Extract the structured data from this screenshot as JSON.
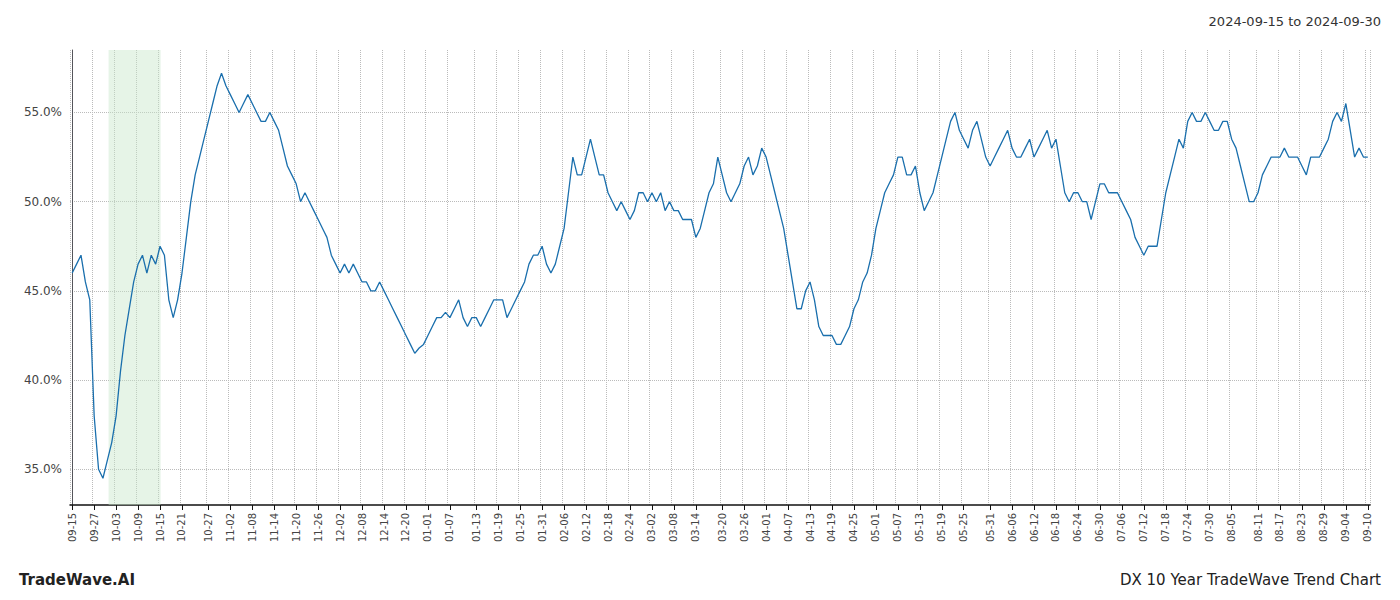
{
  "chart_data": {
    "type": "line",
    "title": "2024-09-15 to 2024-09-30",
    "annotations": [
      "TradeWave.AI",
      "DX 10 Year TradeWave Trend Chart"
    ],
    "color": "#1a6fad",
    "grid": true,
    "highlight": {
      "start": 8.288,
      "end": 20.128,
      "color": "#c8e6c9"
    },
    "ylim": [
      33.0,
      58.5
    ],
    "yticks": [
      {
        "value": 35.0,
        "label": "35.0%"
      },
      {
        "value": 40.0,
        "label": "40.0%"
      },
      {
        "value": 45.0,
        "label": "45.0%"
      },
      {
        "value": 50.0,
        "label": "50.0%"
      },
      {
        "value": 55.0,
        "label": "55.0%"
      }
    ],
    "categories": [
      "09-15",
      null,
      null,
      null,
      null,
      "09-27",
      null,
      null,
      null,
      null,
      "10-03",
      null,
      null,
      null,
      null,
      "10-09",
      null,
      null,
      null,
      null,
      "10-15",
      null,
      null,
      null,
      null,
      "10-21",
      null,
      null,
      null,
      null,
      null,
      "10-27",
      null,
      null,
      null,
      null,
      "11-02",
      null,
      null,
      null,
      null,
      "11-08",
      null,
      null,
      null,
      null,
      "11-14",
      null,
      null,
      null,
      null,
      "11-20",
      null,
      null,
      null,
      null,
      "11-26",
      null,
      null,
      null,
      null,
      "12-02",
      null,
      null,
      null,
      null,
      "12-08",
      null,
      null,
      null,
      null,
      "12-14",
      null,
      null,
      null,
      null,
      "12-20",
      null,
      null,
      null,
      null,
      "01-01",
      null,
      null,
      null,
      null,
      "01-07",
      null,
      null,
      null,
      null,
      null,
      "01-13",
      null,
      null,
      null,
      null,
      "01-19",
      null,
      null,
      null,
      null,
      "01-25",
      null,
      null,
      null,
      null,
      "01-31",
      null,
      null,
      null,
      null,
      "02-06",
      null,
      null,
      null,
      null,
      "02-12",
      null,
      null,
      null,
      null,
      "02-18",
      null,
      null,
      null,
      null,
      "02-24",
      null,
      null,
      null,
      null,
      "03-02",
      null,
      null,
      null,
      null,
      "03-08",
      null,
      null,
      null,
      null,
      "03-14",
      null,
      null,
      null,
      null,
      null,
      "03-20",
      null,
      null,
      null,
      null,
      "03-26",
      null,
      null,
      null,
      null,
      "04-01",
      null,
      null,
      null,
      null,
      "04-07",
      null,
      null,
      null,
      null,
      "04-13",
      null,
      null,
      null,
      null,
      "04-19",
      null,
      null,
      null,
      null,
      "04-25",
      null,
      null,
      null,
      null,
      "05-01",
      null,
      null,
      null,
      null,
      "05-07",
      null,
      null,
      null,
      null,
      "05-13",
      null,
      null,
      null,
      null,
      "05-19",
      null,
      null,
      null,
      null,
      "05-25",
      null,
      null,
      null,
      null,
      null,
      "05-31",
      null,
      null,
      null,
      null,
      "06-06",
      null,
      null,
      null,
      null,
      "06-12",
      null,
      null,
      null,
      null,
      "06-18",
      null,
      null,
      null,
      null,
      "06-24",
      null,
      null,
      null,
      null,
      "06-30",
      null,
      null,
      null,
      null,
      "07-06",
      null,
      null,
      null,
      null,
      "07-12",
      null,
      null,
      null,
      null,
      "07-18",
      null,
      null,
      null,
      null,
      "07-24",
      null,
      null,
      null,
      null,
      "07-30",
      null,
      null,
      null,
      null,
      "08-05",
      null,
      null,
      null,
      null,
      null,
      "08-11",
      null,
      null,
      null,
      null,
      "08-17",
      null,
      null,
      null,
      null,
      "08-23",
      null,
      null,
      null,
      null,
      "08-29",
      null,
      null,
      null,
      null,
      "09-04",
      null,
      null,
      null,
      null,
      "09-10"
    ],
    "values": [
      46.0,
      46.5,
      47.0,
      45.5,
      44.5,
      38.0,
      35.0,
      34.5,
      35.5,
      36.5,
      38.0,
      40.5,
      42.5,
      44.0,
      45.5,
      46.5,
      47.0,
      46.0,
      47.0,
      46.5,
      47.5,
      47.0,
      44.5,
      43.5,
      44.5,
      46.0,
      48.0,
      50.0,
      51.5,
      52.5,
      53.5,
      54.5,
      55.5,
      56.5,
      57.2,
      56.5,
      56.0,
      55.5,
      55.0,
      55.5,
      56.0,
      55.5,
      55.0,
      54.5,
      54.5,
      55.0,
      54.5,
      54.0,
      53.0,
      52.0,
      51.5,
      51.0,
      50.0,
      50.5,
      50.0,
      49.5,
      49.0,
      48.5,
      48.0,
      47.0,
      46.5,
      46.0,
      46.5,
      46.0,
      46.5,
      46.0,
      45.5,
      45.5,
      45.0,
      45.0,
      45.5,
      45.0,
      44.5,
      44.0,
      43.5,
      43.0,
      42.5,
      42.0,
      41.5,
      41.8,
      42.0,
      42.5,
      43.0,
      43.5,
      43.5,
      43.8,
      43.5,
      44.0,
      44.5,
      43.5,
      43.0,
      43.5,
      43.5,
      43.0,
      43.5,
      44.0,
      44.5,
      44.5,
      44.5,
      43.5,
      44.0,
      44.5,
      45.0,
      45.5,
      46.5,
      47.0,
      47.0,
      47.5,
      46.5,
      46.0,
      46.5,
      47.5,
      48.5,
      50.5,
      52.5,
      51.5,
      51.5,
      52.5,
      53.5,
      52.5,
      51.5,
      51.5,
      50.5,
      50.0,
      49.5,
      50.0,
      49.5,
      49.0,
      49.5,
      50.5,
      50.5,
      50.0,
      50.5,
      50.0,
      50.5,
      49.5,
      50.0,
      49.5,
      49.5,
      49.0,
      49.0,
      49.0,
      48.0,
      48.5,
      49.5,
      50.5,
      51.0,
      52.5,
      51.5,
      50.5,
      50.0,
      50.5,
      51.0,
      52.0,
      52.5,
      51.5,
      52.0,
      53.0,
      52.5,
      51.5,
      50.5,
      49.5,
      48.5,
      47.0,
      45.5,
      44.0,
      44.0,
      45.0,
      45.5,
      44.5,
      43.0,
      42.5,
      42.5,
      42.5,
      42.0,
      42.0,
      42.5,
      43.0,
      44.0,
      44.5,
      45.5,
      46.0,
      47.0,
      48.5,
      49.5,
      50.5,
      51.0,
      51.5,
      52.5,
      52.5,
      51.5,
      51.5,
      52.0,
      50.5,
      49.5,
      50.0,
      50.5,
      51.5,
      52.5,
      53.5,
      54.5,
      55.0,
      54.0,
      53.5,
      53.0,
      54.0,
      54.5,
      53.5,
      52.5,
      52.0,
      52.5,
      53.0,
      53.5,
      54.0,
      53.0,
      52.5,
      52.5,
      53.0,
      53.5,
      52.5,
      53.0,
      53.5,
      54.0,
      53.0,
      53.5,
      52.0,
      50.5,
      50.0,
      50.5,
      50.5,
      50.0,
      50.0,
      49.0,
      50.0,
      51.0,
      51.0,
      50.5,
      50.5,
      50.5,
      50.0,
      49.5,
      49.0,
      48.0,
      47.5,
      47.0,
      47.5,
      47.5,
      47.5,
      49.0,
      50.5,
      51.5,
      52.5,
      53.5,
      53.0,
      54.5,
      55.0,
      54.5,
      54.5,
      55.0,
      54.5,
      54.0,
      54.0,
      54.5,
      54.5,
      53.5,
      53.0,
      52.0,
      51.0,
      50.0,
      50.0,
      50.5,
      51.5,
      52.0,
      52.5,
      52.5,
      52.5,
      53.0,
      52.5,
      52.5,
      52.5,
      52.0,
      51.5,
      52.5,
      52.5,
      52.5,
      53.0,
      53.5,
      54.5,
      55.0,
      54.5,
      55.5,
      54.0,
      52.5,
      53.0,
      52.5,
      52.5
    ]
  }
}
